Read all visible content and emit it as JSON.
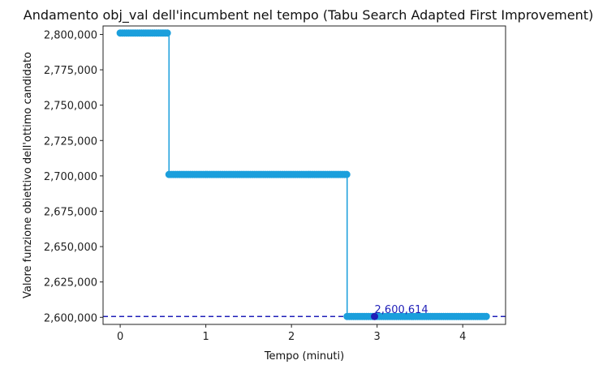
{
  "chart_data": {
    "type": "line",
    "title": "Andamento obj_val dell'incumbent nel tempo (Tabu Search Adapted First Improvement)",
    "xlabel": "Tempo (minuti)",
    "ylabel": "Valore funzione obiettivo dell'ottimo candidato",
    "xlim": [
      -0.2,
      4.5
    ],
    "ylim": [
      2595000,
      2806000
    ],
    "x_ticks": [
      0,
      1,
      2,
      3,
      4
    ],
    "y_ticks": [
      2600000,
      2625000,
      2650000,
      2675000,
      2700000,
      2725000,
      2750000,
      2775000,
      2800000
    ],
    "grid": false,
    "colors": {
      "series": "#1b9fdc",
      "reference": "#1f1fb8",
      "best": "#1f1fb8"
    },
    "series": [
      {
        "segments": [
          {
            "x_start": 0.0,
            "x_end": 0.57,
            "y": 2801000
          },
          {
            "x_start": 0.57,
            "x_end": 2.65,
            "y": 2701000
          },
          {
            "x_start": 2.65,
            "x_end": 4.28,
            "y": 2600614
          }
        ],
        "marker_step": 0.025
      }
    ],
    "reference_line": {
      "y": 2600614,
      "style": "dashed"
    },
    "best_point": {
      "x": 2.97,
      "y": 2600614,
      "label": "2,600,614"
    }
  }
}
